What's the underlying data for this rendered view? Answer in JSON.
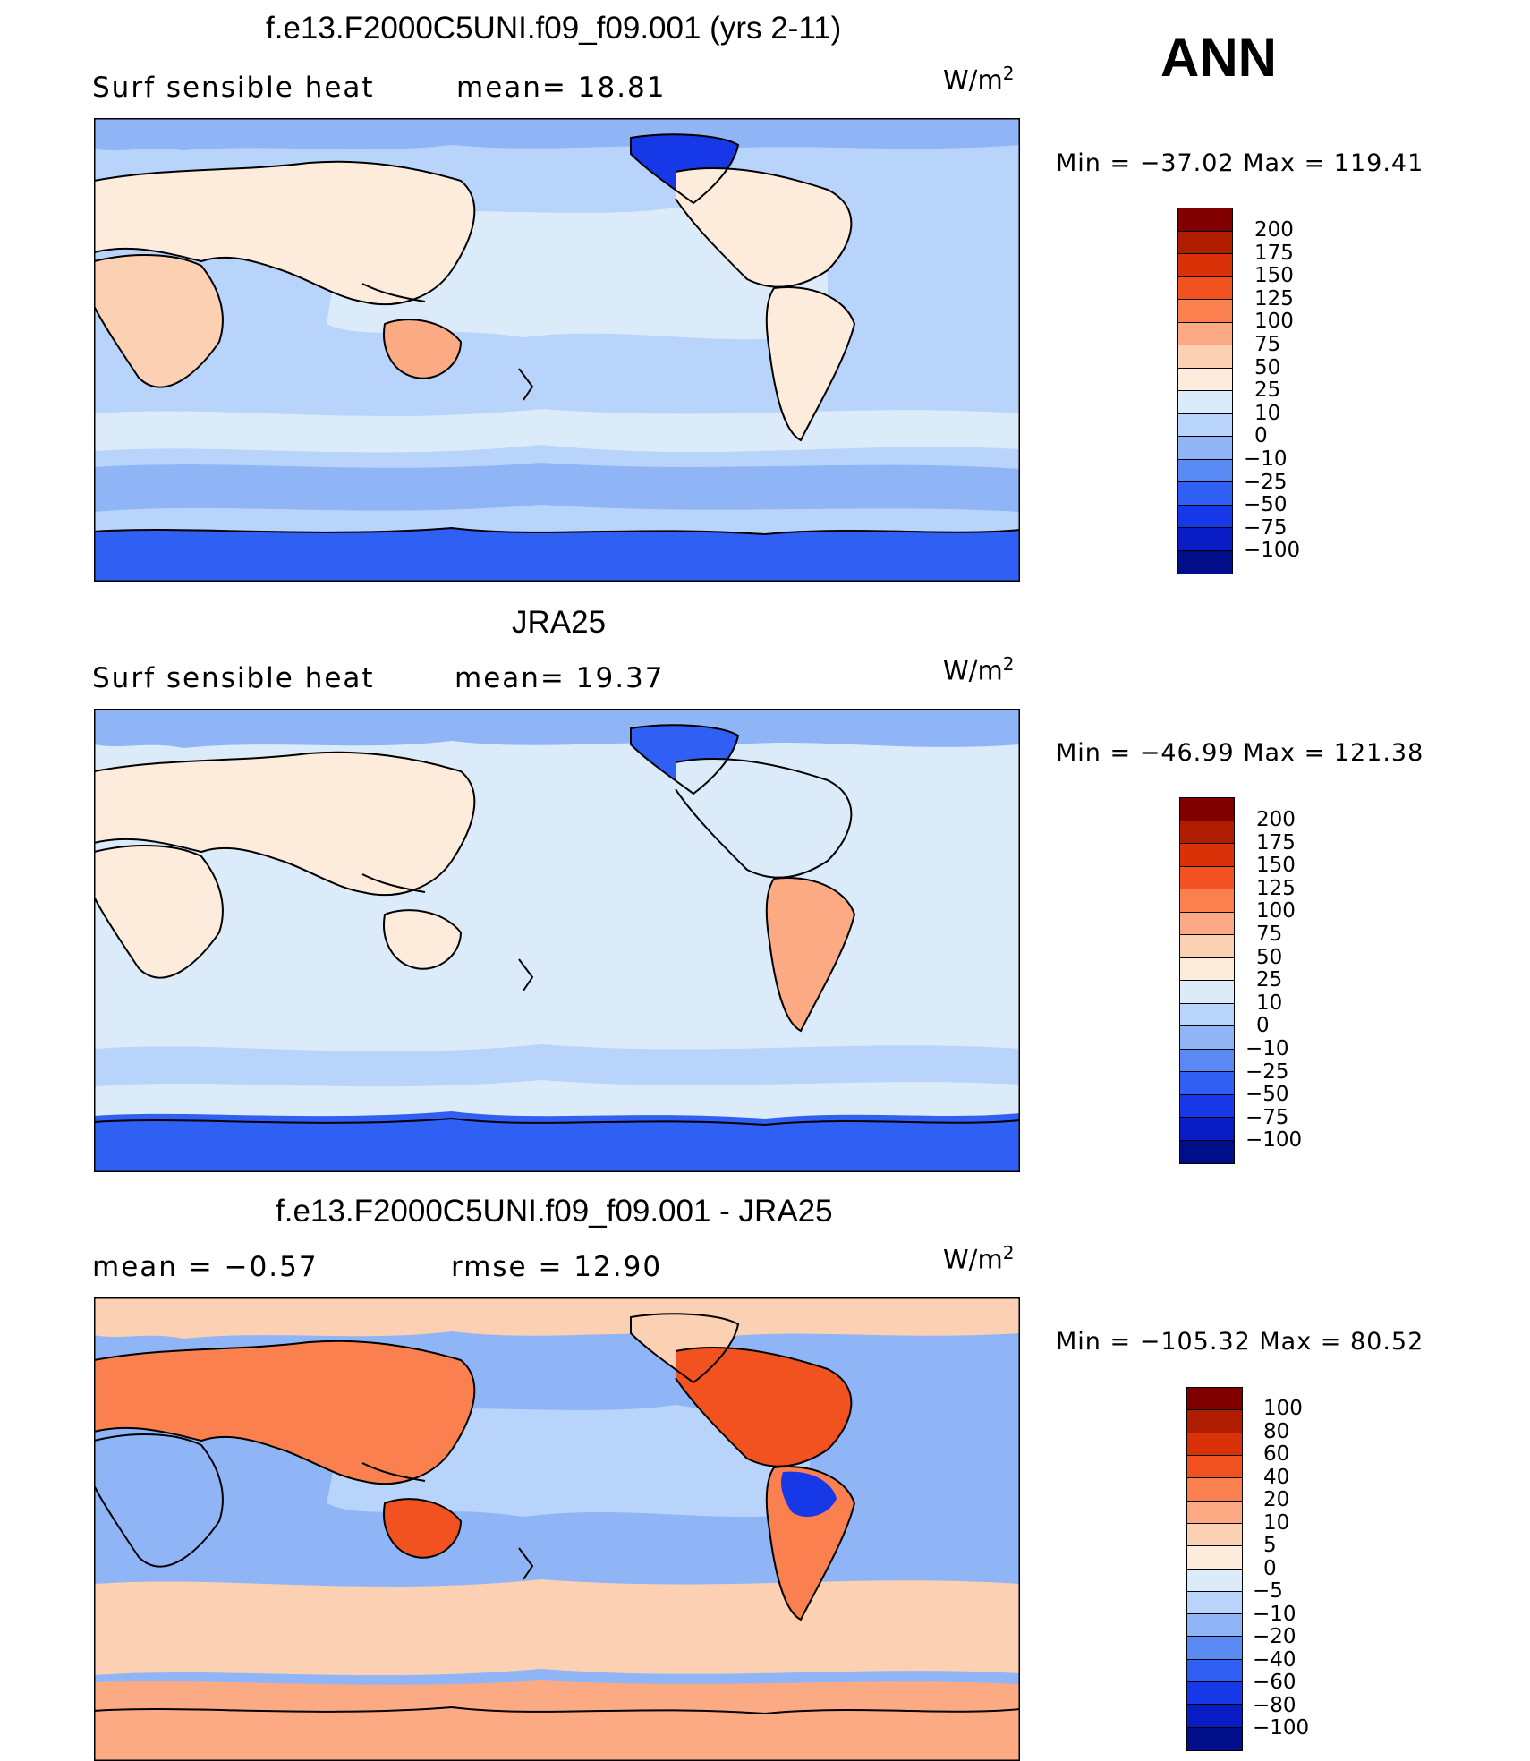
{
  "season": "ANN",
  "panels": [
    {
      "title": "f.e13.F2000C5UNI.f09_f09.001 (yrs 2-11)",
      "left_label": "Surf  sensible  heat",
      "mid_label": "mean=   18.81",
      "units": "W/m",
      "units_sup": "2",
      "minmax": "Min  =  −37.02  Max  =  119.41",
      "colorbar": {
        "levels": [
          "200",
          "175",
          "150",
          "125",
          "100",
          "75",
          "50",
          "25",
          "10",
          "0",
          "−10",
          "−25",
          "−50",
          "−75",
          "−100"
        ],
        "colors": [
          "#800000",
          "#b01c00",
          "#d93209",
          "#f2521f",
          "#fa8050",
          "#fcaa84",
          "#fbd0b3",
          "#fdebdc",
          "#dcebfa",
          "#b8d4fb",
          "#8fb5f7",
          "#5989f3",
          "#2f5ff3",
          "#1638e6",
          "#0a1cc4",
          "#000e8a"
        ]
      },
      "chart_data": {
        "type": "heatmap",
        "variable": "Surf sensible heat",
        "units": "W/m2",
        "mean": 18.81,
        "min": -37.02,
        "max": 119.41,
        "contour_levels": [
          -100,
          -75,
          -50,
          -25,
          -10,
          0,
          10,
          25,
          50,
          75,
          100,
          125,
          150,
          175,
          200
        ]
      }
    },
    {
      "title": "JRA25",
      "left_label": "Surf  sensible  heat",
      "mid_label": "mean=   19.37",
      "units": "W/m",
      "units_sup": "2",
      "minmax": "Min  =  −46.99  Max  =  121.38",
      "colorbar": {
        "levels": [
          "200",
          "175",
          "150",
          "125",
          "100",
          "75",
          "50",
          "25",
          "10",
          "0",
          "−10",
          "−25",
          "−50",
          "−75",
          "−100"
        ],
        "colors": [
          "#800000",
          "#b01c00",
          "#d93209",
          "#f2521f",
          "#fa8050",
          "#fcaa84",
          "#fbd0b3",
          "#fdebdc",
          "#dcebfa",
          "#b8d4fb",
          "#8fb5f7",
          "#5989f3",
          "#2f5ff3",
          "#1638e6",
          "#0a1cc4",
          "#000e8a"
        ]
      },
      "chart_data": {
        "type": "heatmap",
        "variable": "Surf sensible heat",
        "units": "W/m2",
        "mean": 19.37,
        "min": -46.99,
        "max": 121.38,
        "contour_levels": [
          -100,
          -75,
          -50,
          -25,
          -10,
          0,
          10,
          25,
          50,
          75,
          100,
          125,
          150,
          175,
          200
        ]
      }
    },
    {
      "title": "f.e13.F2000C5UNI.f09_f09.001 - JRA25",
      "left_label": "mean  =    −0.57",
      "mid_label": "rmse  =    12.90",
      "units": "W/m",
      "units_sup": "2",
      "minmax": "Min  =  −105.32  Max  =    80.52",
      "colorbar": {
        "levels": [
          "100",
          "80",
          "60",
          "40",
          "20",
          "10",
          "5",
          "0",
          "−5",
          "−10",
          "−20",
          "−40",
          "−60",
          "−80",
          "−100"
        ],
        "colors": [
          "#800000",
          "#b01c00",
          "#d93209",
          "#f2521f",
          "#fa8050",
          "#fcaa84",
          "#fbd0b3",
          "#fdebdc",
          "#dcebfa",
          "#b8d4fb",
          "#8fb5f7",
          "#5989f3",
          "#2f5ff3",
          "#1638e6",
          "#0a1cc4",
          "#000e8a"
        ]
      },
      "chart_data": {
        "type": "heatmap",
        "variable": "difference",
        "units": "W/m2",
        "mean": -0.57,
        "rmse": 12.9,
        "min": -105.32,
        "max": 80.52,
        "contour_levels": [
          -100,
          -80,
          -60,
          -40,
          -20,
          -10,
          -5,
          0,
          5,
          10,
          20,
          40,
          60,
          80,
          100
        ]
      }
    }
  ]
}
